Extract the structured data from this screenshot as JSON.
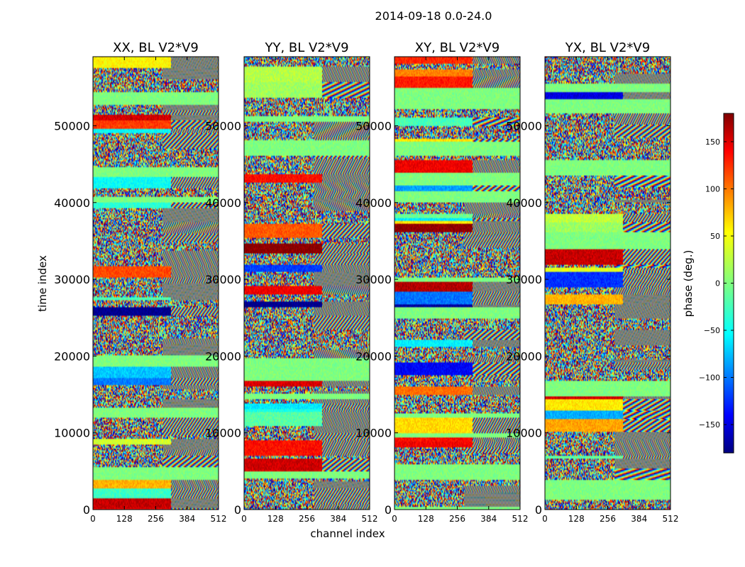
{
  "figure": {
    "suptitle": "2014-09-18 0.0-24.0"
  },
  "chart_data": {
    "type": "heatmap",
    "title": "2014-09-18 0.0-24.0",
    "xlabel": "channel index",
    "ylabel": "time index",
    "xlim": [
      0,
      512
    ],
    "ylim": [
      0,
      59000
    ],
    "x_ticks": [
      "0",
      "128",
      "256",
      "384",
      "512"
    ],
    "y_ticks": [
      "0",
      "10000",
      "20000",
      "30000",
      "40000",
      "50000"
    ],
    "panels": [
      {
        "title": "XX, BL V2*V9"
      },
      {
        "title": "YY, BL V2*V9"
      },
      {
        "title": "XY, BL V2*V9"
      },
      {
        "title": "YX, BL V2*V9"
      }
    ],
    "colorbar": {
      "label": "phase (deg.)",
      "range": [
        -180,
        180
      ],
      "ticks": [
        "150",
        "100",
        "50",
        "0",
        "−50",
        "−100",
        "−150"
      ],
      "colormap": "jet"
    }
  }
}
